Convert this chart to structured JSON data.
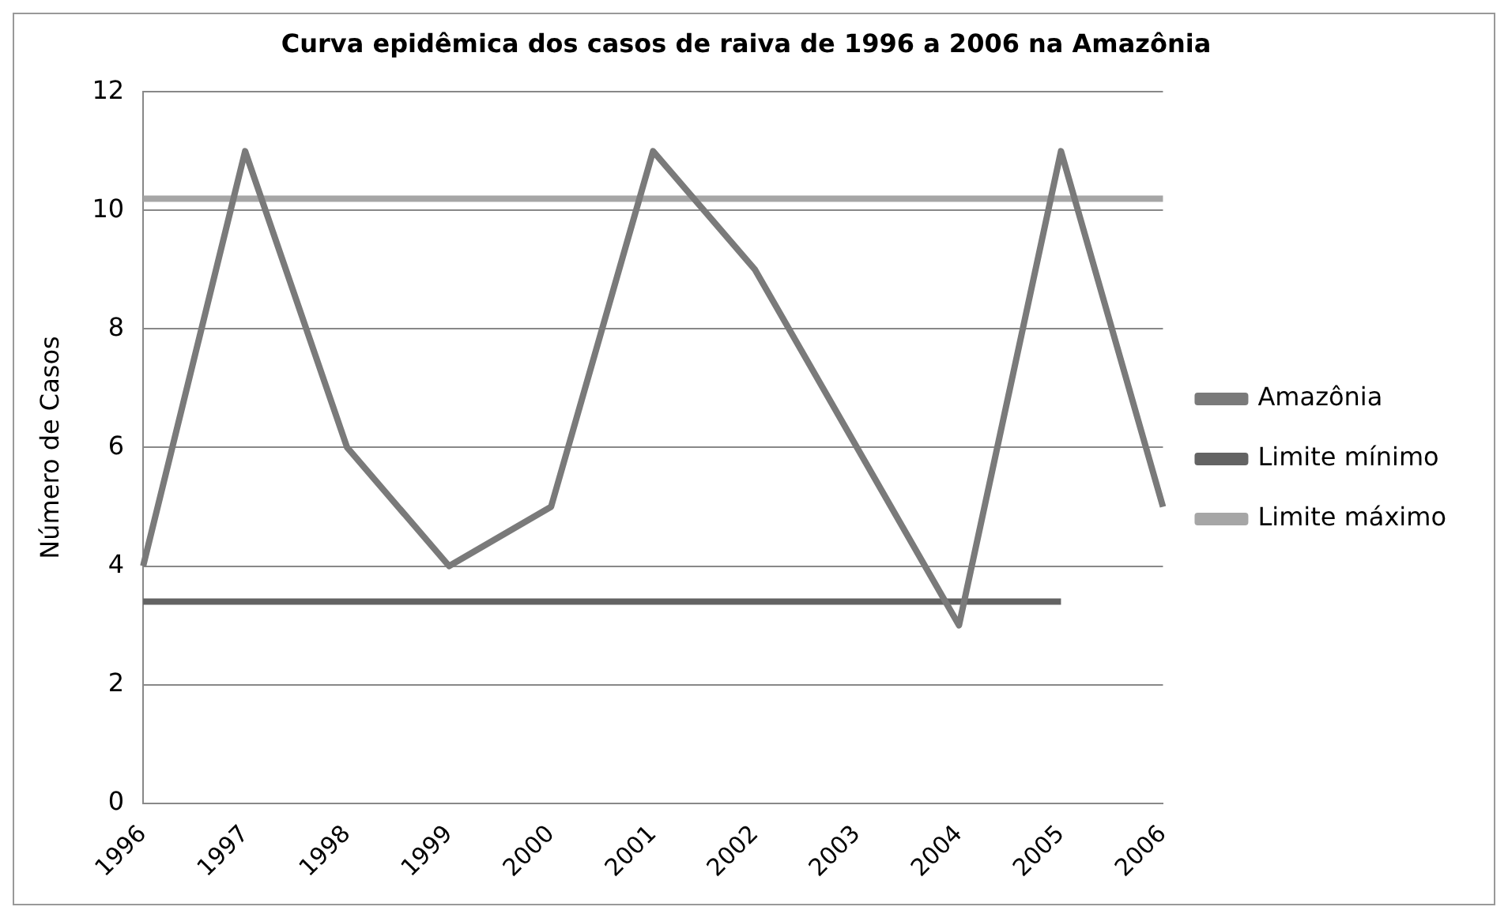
{
  "chart_data": {
    "type": "line",
    "title": "Curva epidêmica dos casos de raiva de 1996 a 2006 na Amazônia",
    "ylabel": "Número de Casos",
    "categories": [
      "1996",
      "1997",
      "1998",
      "1999",
      "2000",
      "2001",
      "2002",
      "2003",
      "2004",
      "2005",
      "2006"
    ],
    "series": [
      {
        "name": "Amazônia",
        "color": "#7a7a7a",
        "values": [
          4,
          11,
          6,
          4,
          5,
          11,
          9,
          6,
          3,
          11,
          5
        ]
      },
      {
        "name": "Limite mínimo",
        "color": "#636363",
        "values": [
          3.4,
          3.4,
          3.4,
          3.4,
          3.4,
          3.4,
          3.4,
          3.4,
          3.4,
          3.4,
          null
        ]
      },
      {
        "name": "Limite máximo",
        "color": "#a6a6a6",
        "values": [
          10.2,
          10.2,
          10.2,
          10.2,
          10.2,
          10.2,
          10.2,
          10.2,
          10.2,
          10.2,
          10.2
        ]
      }
    ],
    "ylim": [
      0,
      12
    ],
    "yticks": [
      0,
      2,
      4,
      6,
      8,
      10,
      12
    ],
    "grid": "y",
    "legend": "right",
    "marker": "none",
    "line_style": "solid"
  }
}
